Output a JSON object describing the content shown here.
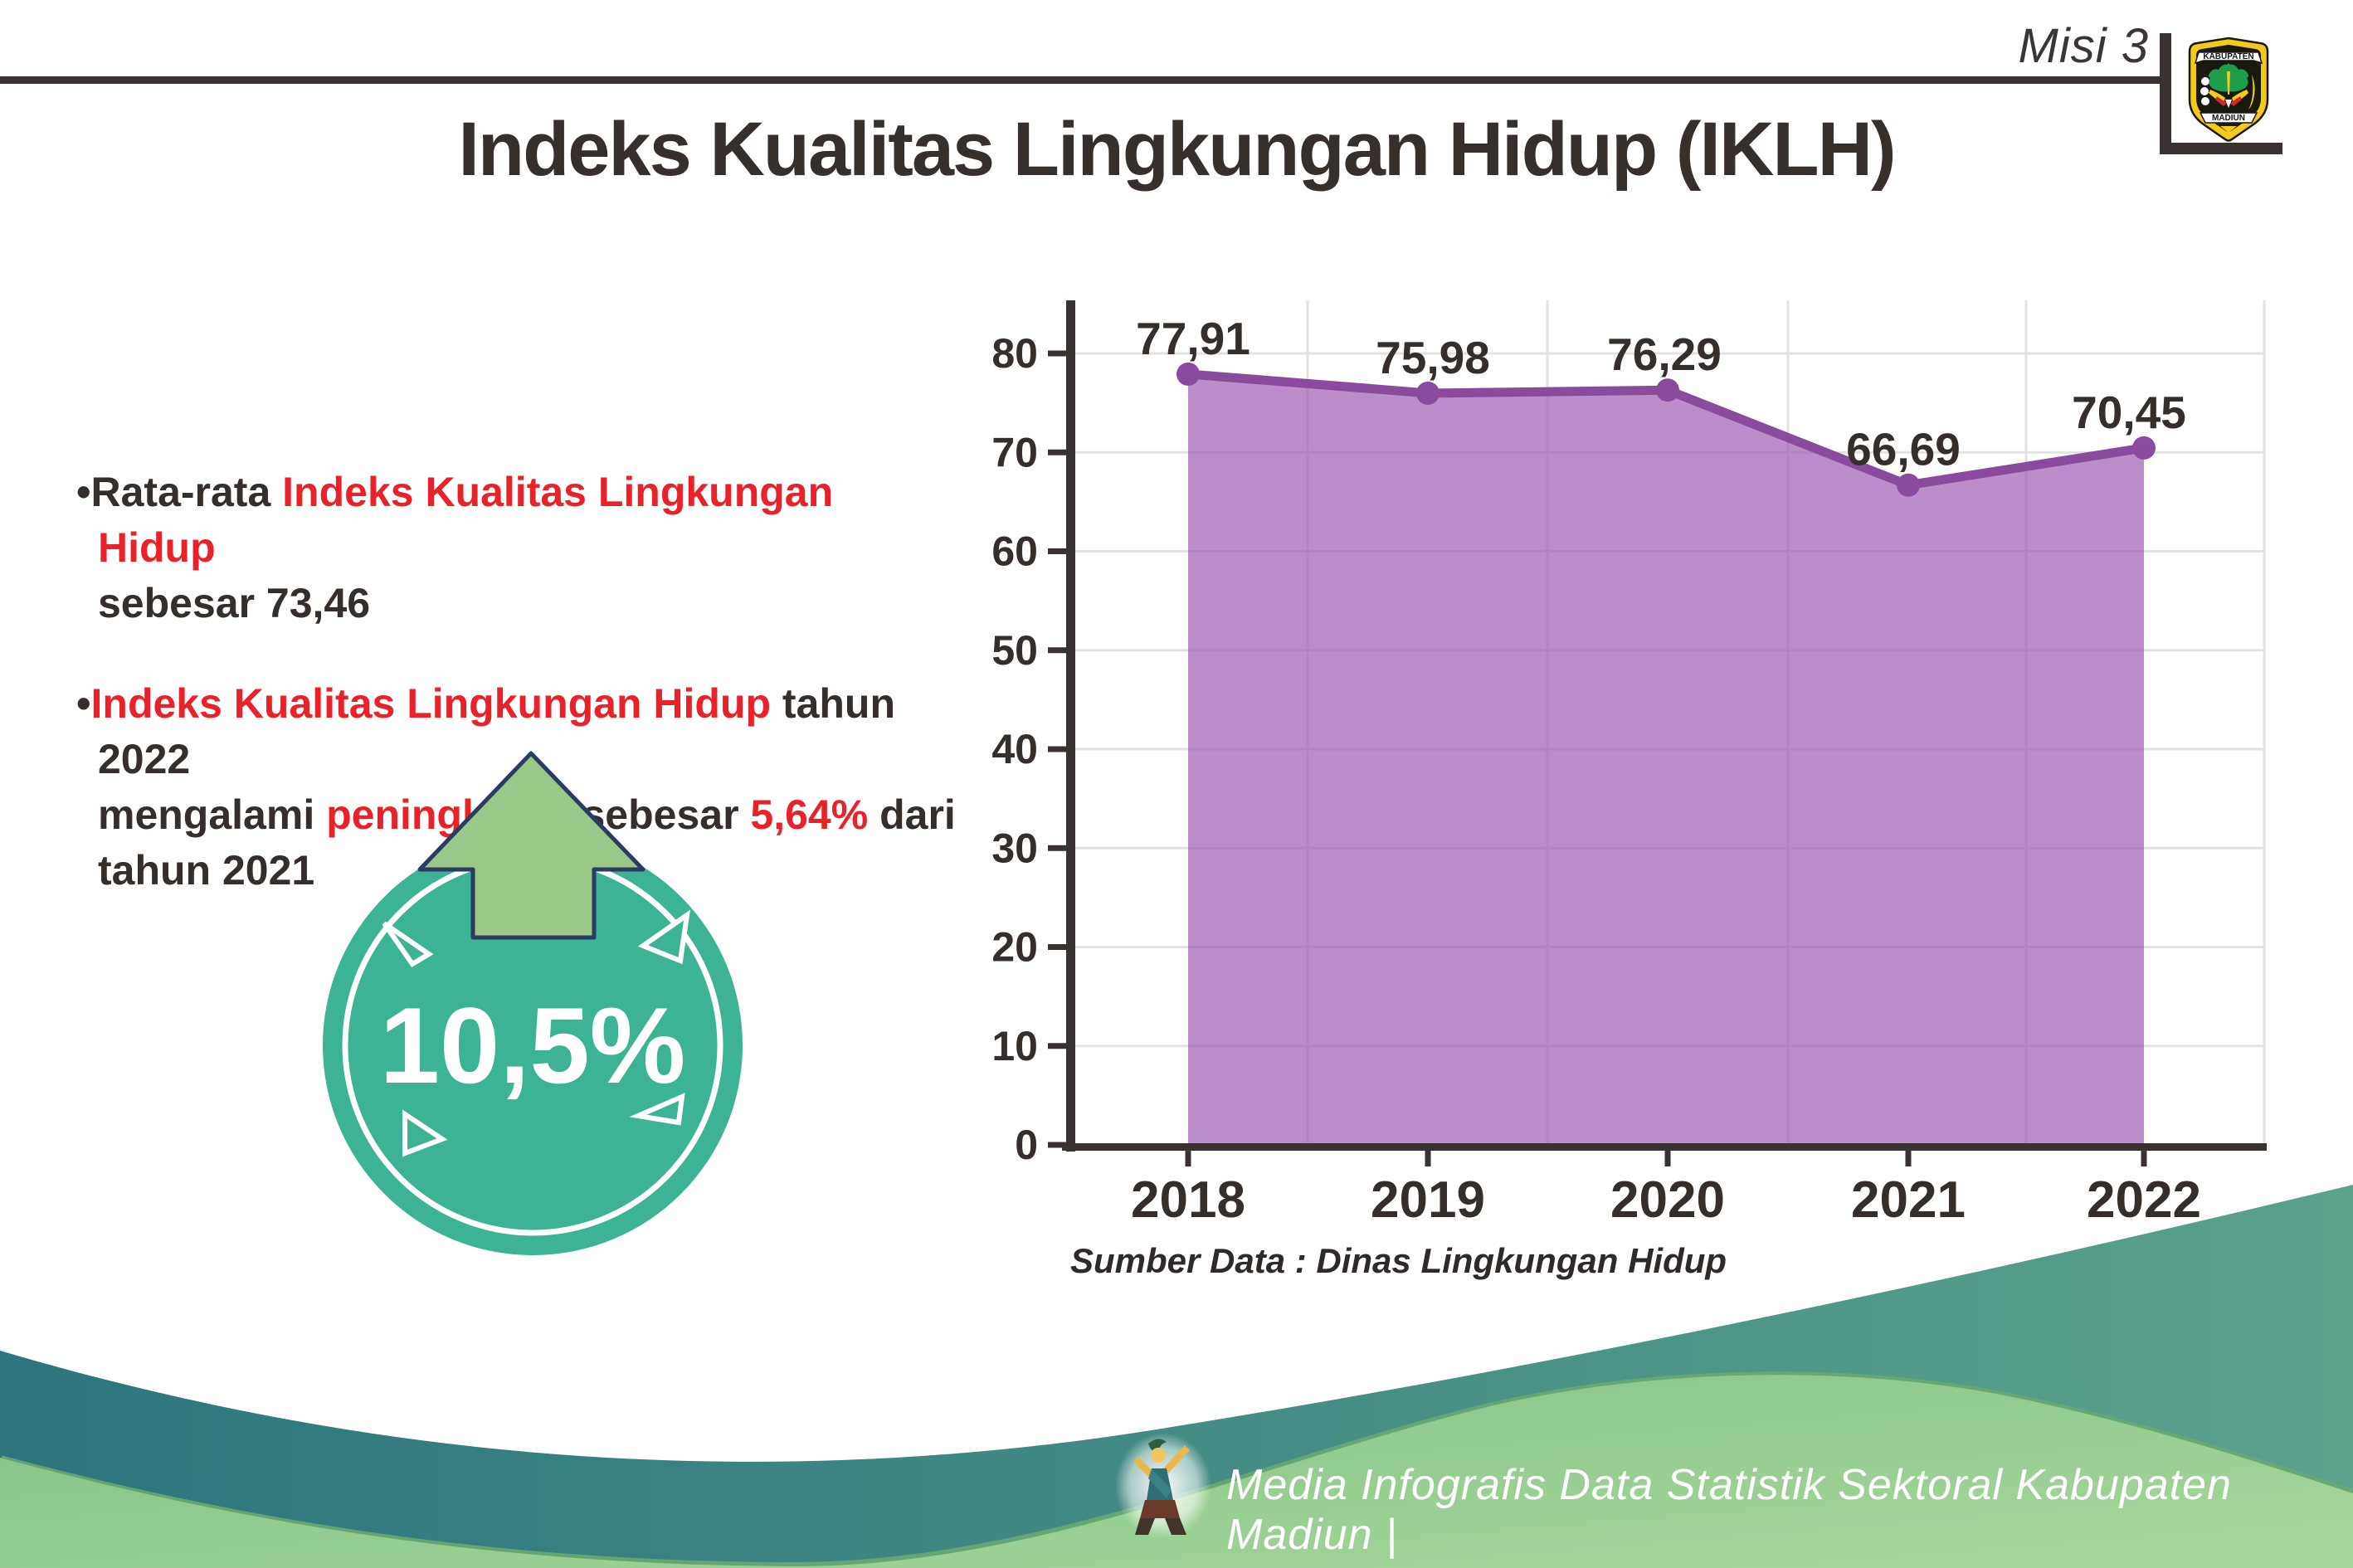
{
  "header": {
    "misi_label": "Misi 3",
    "logo": {
      "top_banner": "KABUPATEN",
      "bottom_banner": "MADIUN"
    }
  },
  "title": "Indeks Kualitas Lingkungan Hidup (IKLH)",
  "bullets": [
    {
      "lines": [
        [
          {
            "t": "Rata-rata ",
            "red": false
          },
          {
            "t": "Indeks Kualitas Lingkungan Hidup",
            "red": true
          }
        ],
        [
          {
            "t": "sebesar 73,46",
            "red": false
          }
        ]
      ]
    },
    {
      "lines": [
        [
          {
            "t": "Indeks Kualitas Lingkungan Hidup",
            "red": true
          },
          {
            "t": " tahun 2022",
            "red": false
          }
        ],
        [
          {
            "t": "mengalami ",
            "red": false
          },
          {
            "t": "peningkatan",
            "red": true
          },
          {
            "t": " sebesar ",
            "red": false
          },
          {
            "t": "5,64%",
            "red": true
          },
          {
            "t": " dari",
            "red": false
          }
        ],
        [
          {
            "t": "tahun 2021",
            "red": false
          }
        ]
      ]
    }
  ],
  "badge": {
    "value": "10,5%"
  },
  "chart_data": {
    "type": "area",
    "title": "",
    "categories": [
      "2018",
      "2019",
      "2020",
      "2021",
      "2022"
    ],
    "series": [
      {
        "name": "IKLH",
        "values": [
          77.91,
          75.98,
          76.29,
          66.69,
          70.45
        ]
      }
    ],
    "value_labels": [
      "77,91",
      "75,98",
      "76,29",
      "66,69",
      "70,45"
    ],
    "xlabel": "",
    "ylabel": "",
    "ylim": [
      0,
      80
    ],
    "ytick_step": 10,
    "grid": true,
    "legend_position": "none"
  },
  "source_text": "Sumber Data : Dinas Lingkungan Hidup",
  "footer": {
    "text": "Media Infografis Data Statistik Sektoral Kabupaten Madiun |"
  },
  "colors": {
    "accent_red": "#e92128",
    "text_dark": "#362e2a",
    "axis": "#3a3231",
    "gridline": "#e2e2e2",
    "chart_line": "#8a4a9e",
    "chart_fill": "rgba(159,92,181,0.70)",
    "badge_teal": "#3bb394",
    "arrow_green": "#9bc888",
    "arrow_outline": "#2b3c63",
    "wave_teal_dark": "#2c757c",
    "wave_teal_light": "#5aa28c",
    "wave_green_light": "#7fc287",
    "wave_green_pale": "#a8d79a",
    "wave_green_edge": "#68aa72"
  }
}
